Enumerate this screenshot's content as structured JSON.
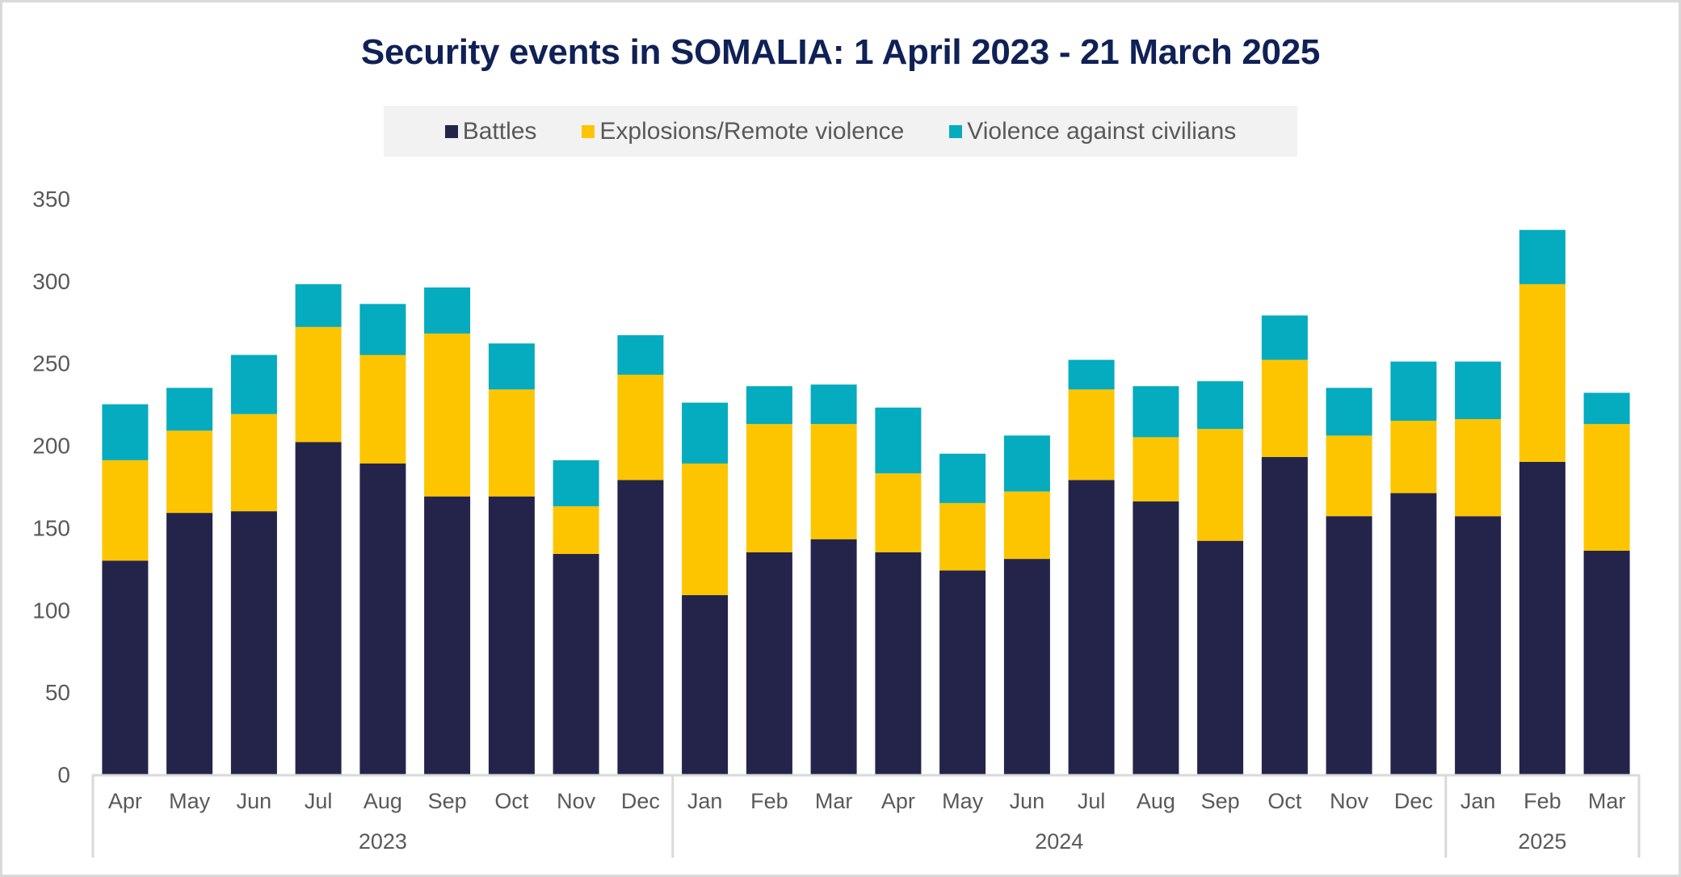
{
  "chart_data": {
    "type": "bar",
    "stacked": true,
    "title": "Security events in SOMALIA: 1 April 2023 - 21 March 2025",
    "xlabel": "",
    "ylabel": "",
    "ylim": [
      0,
      350
    ],
    "yticks": [
      0,
      50,
      100,
      150,
      200,
      250,
      300,
      350
    ],
    "grid": false,
    "legend_position": "top",
    "categories": [
      "Apr",
      "May",
      "Jun",
      "Jul",
      "Aug",
      "Sep",
      "Oct",
      "Nov",
      "Dec",
      "Jan",
      "Feb",
      "Mar",
      "Apr",
      "May",
      "Jun",
      "Jul",
      "Aug",
      "Sep",
      "Oct",
      "Nov",
      "Dec",
      "Jan",
      "Feb",
      "Mar"
    ],
    "year_groups": [
      {
        "label": "2023",
        "count": 9
      },
      {
        "label": "2024",
        "count": 12
      },
      {
        "label": "2025",
        "count": 3
      }
    ],
    "series": [
      {
        "name": "Battles",
        "color": "#24244b",
        "values": [
          130,
          159,
          160,
          202,
          189,
          169,
          169,
          134,
          179,
          109,
          135,
          143,
          135,
          124,
          131,
          179,
          166,
          142,
          193,
          157,
          171,
          157,
          190,
          136
        ]
      },
      {
        "name": "Explosions/Remote violence",
        "color": "#fdc500",
        "values": [
          61,
          50,
          59,
          70,
          66,
          99,
          65,
          29,
          64,
          80,
          78,
          70,
          48,
          41,
          41,
          55,
          39,
          68,
          59,
          49,
          44,
          59,
          108,
          77
        ]
      },
      {
        "name": "Violence against civilians",
        "color": "#05abbe",
        "values": [
          34,
          26,
          36,
          26,
          31,
          28,
          28,
          28,
          24,
          37,
          23,
          24,
          40,
          30,
          34,
          18,
          31,
          29,
          27,
          29,
          36,
          35,
          33,
          19
        ]
      }
    ]
  }
}
